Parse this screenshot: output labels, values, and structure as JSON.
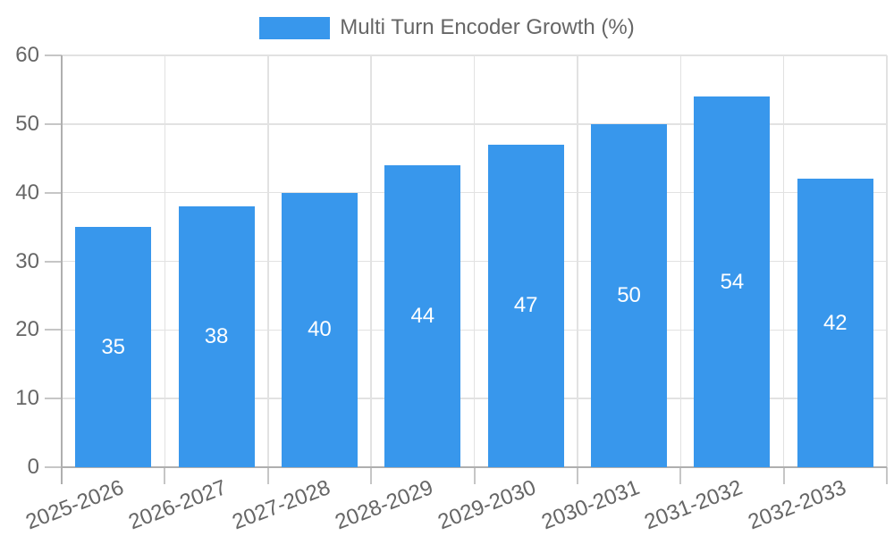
{
  "chart_data": {
    "type": "bar",
    "title": "Multi Turn Encoder Growth (%)",
    "categories": [
      "2025-2026",
      "2026-2027",
      "2027-2028",
      "2028-2029",
      "2029-2030",
      "2030-2031",
      "2031-2032",
      "2032-2033"
    ],
    "values": [
      35,
      38,
      40,
      44,
      47,
      50,
      54,
      42
    ],
    "xlabel": "",
    "ylabel": "",
    "ylim": [
      0,
      60
    ],
    "yticks": [
      0,
      10,
      20,
      30,
      40,
      50,
      60
    ],
    "grid": "both",
    "legend_position": "top-center",
    "value_labels": "inside-center",
    "colors": {
      "bar": "#3897EC",
      "grid": "#E2E2E2",
      "axis": "#AFAFAF",
      "tick": "#C6C6C6",
      "text": "#666666",
      "value_text": "#FFFFFF",
      "background": "#FFFFFF"
    }
  }
}
